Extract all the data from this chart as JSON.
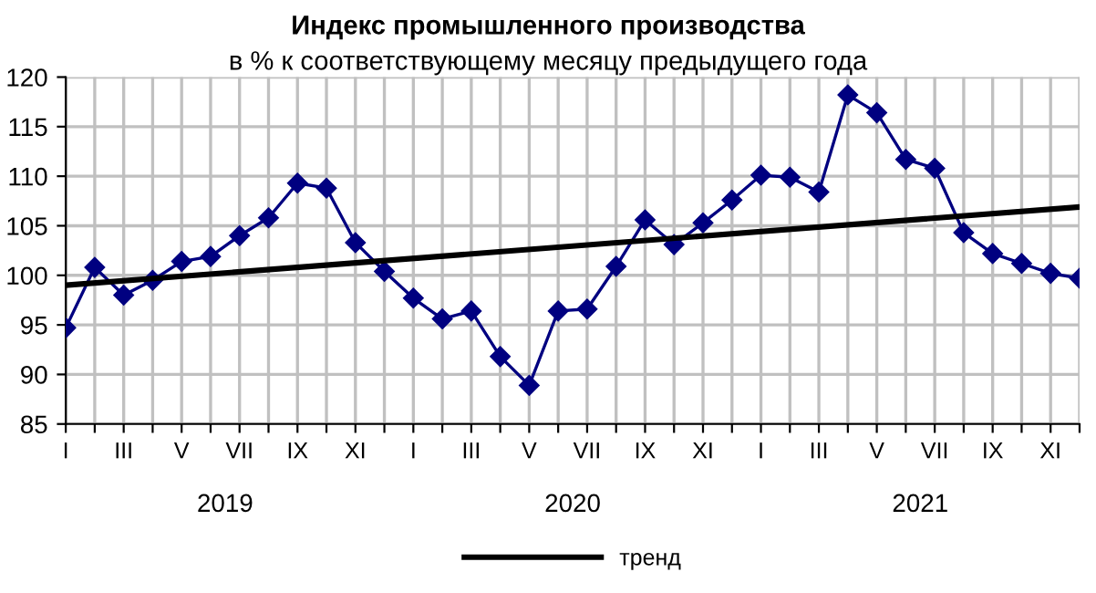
{
  "chart_data": {
    "type": "line",
    "title": "Индекс промышленного производства",
    "subtitle": "в % к соответствующему месяцу предыдущего года",
    "categories": [
      "I",
      null,
      "III",
      null,
      "V",
      null,
      "VII",
      null,
      "IX",
      null,
      "XI",
      null,
      "I",
      null,
      "III",
      null,
      "V",
      null,
      "VII",
      null,
      "IX",
      null,
      "XI",
      null,
      "I",
      null,
      "III",
      null,
      "V",
      null,
      "VII",
      null,
      "IX",
      null,
      "XI",
      null
    ],
    "annotations": [
      "2019",
      "2020",
      "2021"
    ],
    "series": [
      {
        "color": "#000080",
        "marker": "diamond",
        "values": [
          94.7,
          100.8,
          98.0,
          99.5,
          101.4,
          101.9,
          104.0,
          105.8,
          109.3,
          108.8,
          103.3,
          100.4,
          97.7,
          95.6,
          96.4,
          91.8,
          88.9,
          96.4,
          96.6,
          100.9,
          105.6,
          103.1,
          105.3,
          107.6,
          110.1,
          109.9,
          108.4,
          118.2,
          116.4,
          111.7,
          110.8,
          104.3,
          102.2,
          101.2,
          100.2,
          99.7
        ]
      },
      {
        "name": "тренд",
        "color": "#000000",
        "marker": "none",
        "values": [
          99.0,
          null,
          null,
          null,
          null,
          null,
          null,
          null,
          null,
          null,
          null,
          null,
          null,
          null,
          null,
          null,
          null,
          null,
          null,
          null,
          null,
          null,
          null,
          null,
          null,
          null,
          null,
          null,
          null,
          null,
          null,
          null,
          null,
          null,
          null,
          106.9
        ]
      }
    ],
    "ylim": [
      85,
      120
    ],
    "yticks": [
      85,
      90,
      95,
      100,
      105,
      110,
      115,
      120
    ],
    "grid": true,
    "legend": "bottom"
  }
}
